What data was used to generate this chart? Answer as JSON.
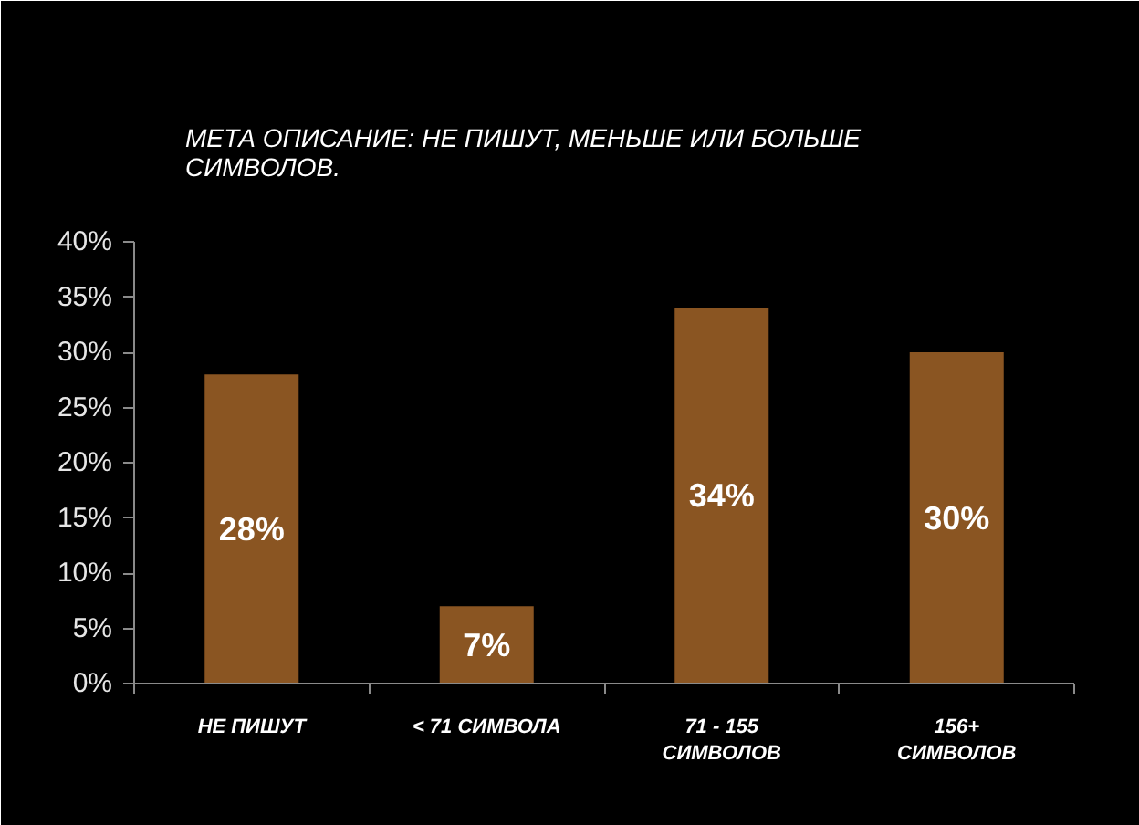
{
  "chart_data": {
    "type": "bar",
    "title": "МЕТА ОПИСАНИЕ: НЕ ПИШУТ, МЕНЬШЕ ИЛИ БОЛЬШЕ СИМВОЛОВ.",
    "categories": [
      "НЕ ПИШУТ",
      "< 71 СИМВОЛА",
      "71 - 155 СИМВОЛОВ",
      "156+ СИМВОЛОВ"
    ],
    "values": [
      28,
      7,
      34,
      30
    ],
    "color": "#8a5522",
    "value_labels": [
      "28%",
      "7%",
      "34%",
      "30%"
    ],
    "ylim": [
      0,
      40
    ],
    "yticks": [
      {
        "value": 0,
        "label": "0%"
      },
      {
        "value": 5,
        "label": "5%"
      },
      {
        "value": 10,
        "label": "10%"
      },
      {
        "value": 15,
        "label": "15%"
      },
      {
        "value": 20,
        "label": "20%"
      },
      {
        "value": 25,
        "label": "25%"
      },
      {
        "value": 30,
        "label": "30%"
      },
      {
        "value": 35,
        "label": "35%"
      },
      {
        "value": 40,
        "label": "40%"
      }
    ],
    "grid": false
  }
}
